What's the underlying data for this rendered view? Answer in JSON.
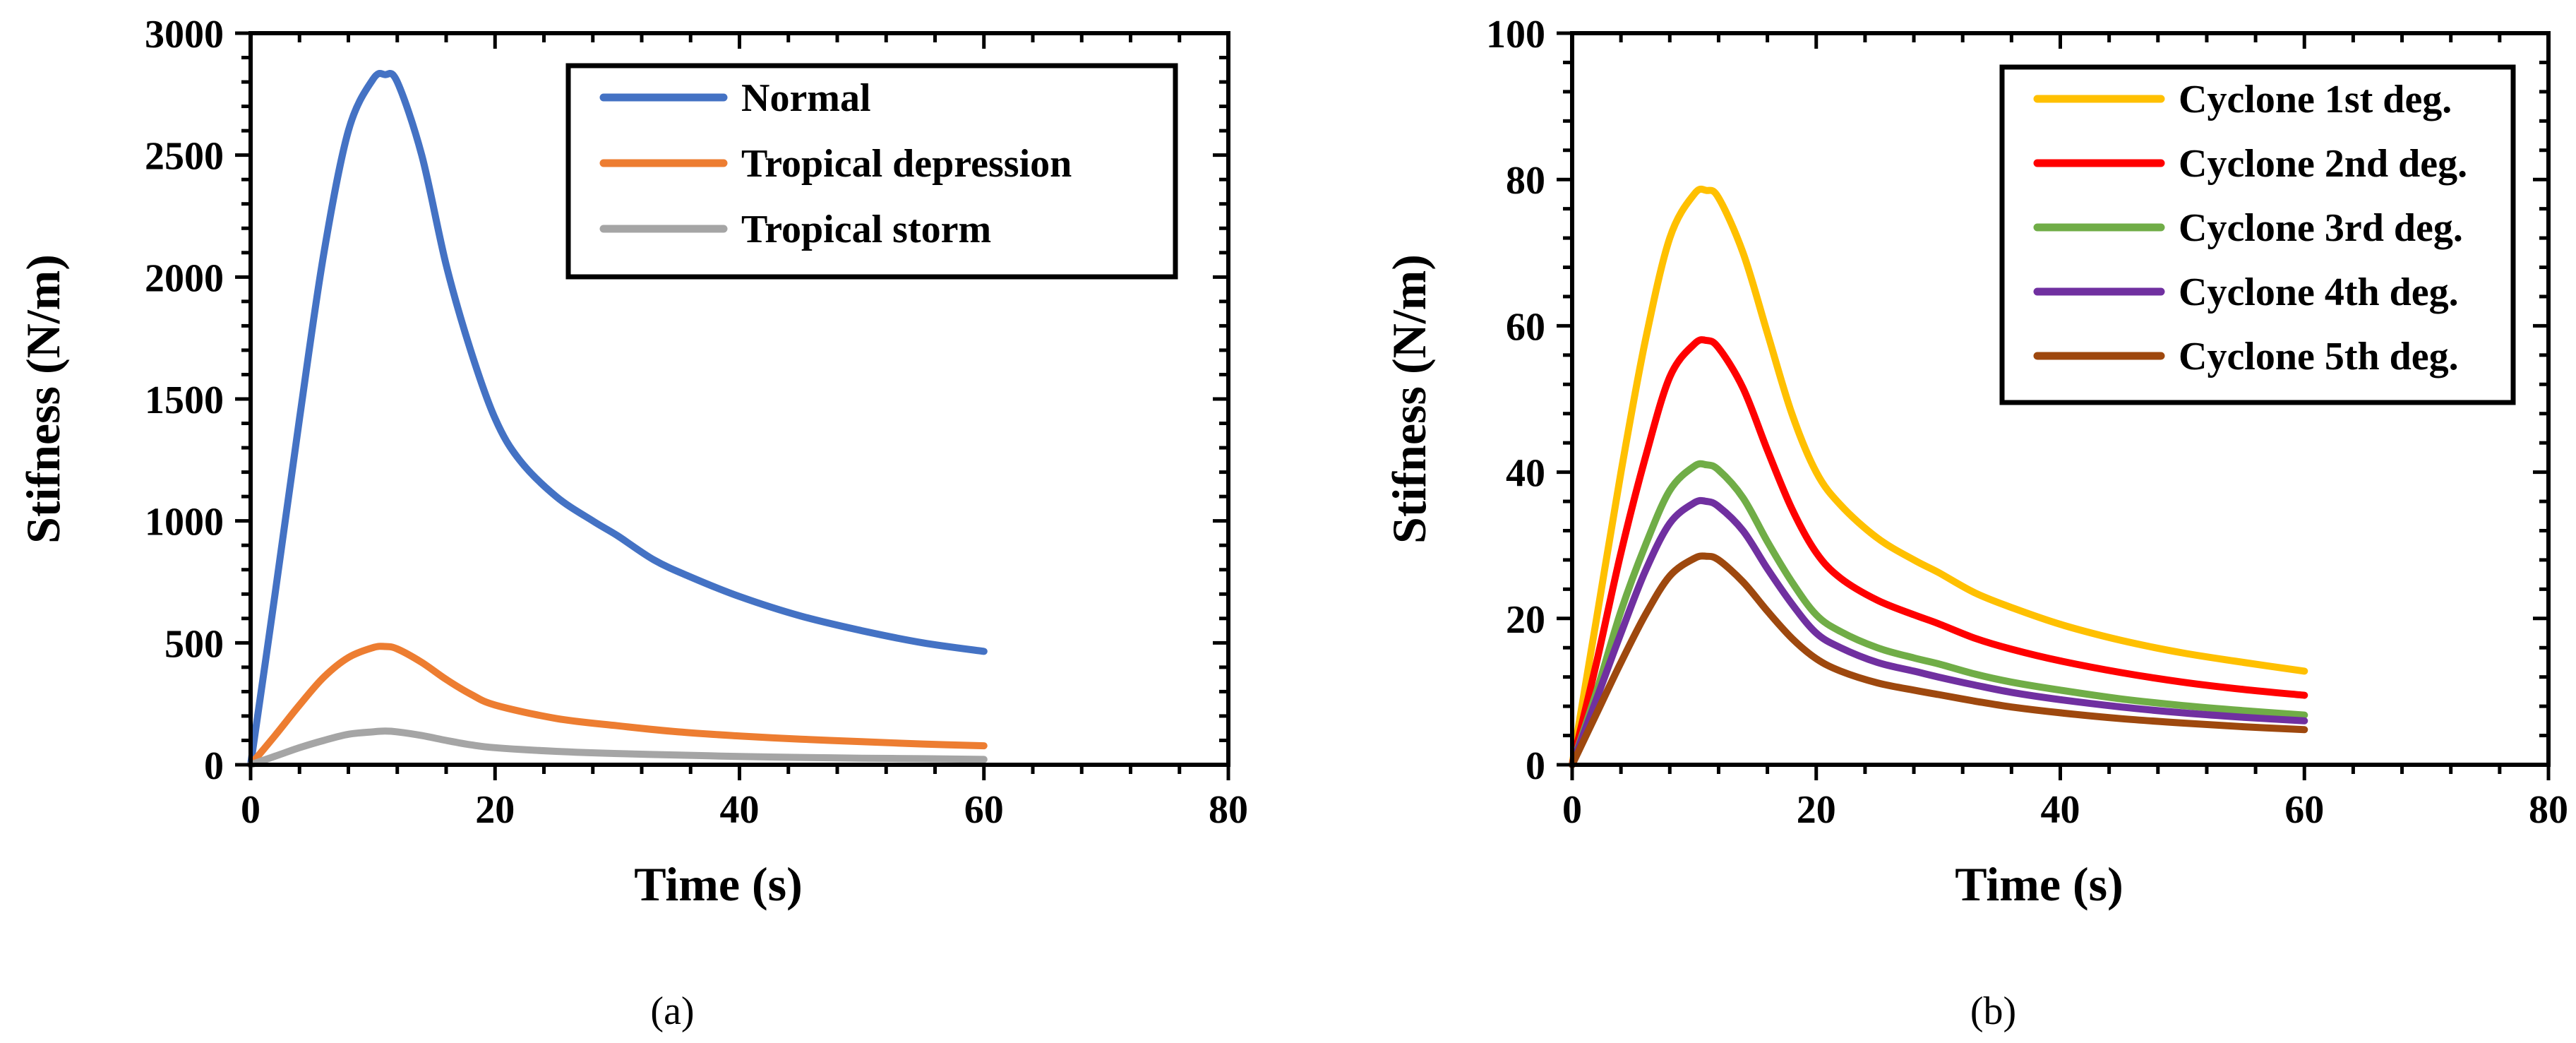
{
  "chart_data": [
    {
      "type": "line",
      "panel_label": "(a)",
      "title": "",
      "xlabel": "Time (s)",
      "ylabel": "Stifness (N/m)",
      "xlim": [
        0,
        80
      ],
      "ylim": [
        0,
        3000
      ],
      "xticks": [
        0,
        20,
        40,
        60,
        80
      ],
      "yticks": [
        0,
        500,
        1000,
        1500,
        2000,
        2500,
        3000
      ],
      "xtick_labels": [
        "0",
        "20",
        "40",
        "60",
        "80"
      ],
      "ytick_labels": [
        "0",
        "500",
        "1000",
        "1500",
        "2000",
        "2500",
        "3000"
      ],
      "grid": false,
      "legend_position": "top-right",
      "series": [
        {
          "name": "Normal",
          "color": "#4472C4",
          "x": [
            0,
            2,
            4,
            6,
            8,
            10,
            11,
            12,
            14,
            16,
            18,
            20,
            22,
            25,
            28,
            30,
            33,
            36,
            40,
            45,
            50,
            55,
            60
          ],
          "y": [
            0,
            700,
            1420,
            2100,
            2600,
            2810,
            2830,
            2800,
            2500,
            2050,
            1700,
            1420,
            1250,
            1100,
            1000,
            940,
            840,
            770,
            690,
            610,
            550,
            500,
            465
          ]
        },
        {
          "name": "Tropical depression",
          "color": "#ED7D31",
          "x": [
            0,
            2,
            4,
            6,
            8,
            10,
            11,
            12,
            14,
            16,
            18,
            20,
            25,
            30,
            35,
            40,
            45,
            50,
            55,
            60
          ],
          "y": [
            0,
            120,
            245,
            360,
            440,
            480,
            485,
            475,
            420,
            350,
            290,
            245,
            190,
            160,
            135,
            118,
            105,
            95,
            85,
            78
          ]
        },
        {
          "name": "Tropical storm",
          "color": "#A5A5A5",
          "x": [
            0,
            2,
            4,
            6,
            8,
            10,
            11,
            12,
            14,
            16,
            18,
            20,
            25,
            30,
            35,
            40,
            45,
            50,
            55,
            60
          ],
          "y": [
            0,
            35,
            70,
            100,
            125,
            135,
            138,
            135,
            120,
            100,
            82,
            70,
            55,
            46,
            40,
            34,
            30,
            27,
            25,
            22
          ]
        }
      ]
    },
    {
      "type": "line",
      "panel_label": "(b)",
      "title": "",
      "xlabel": "Time (s)",
      "ylabel": "Stifness (N/m)",
      "xlim": [
        0,
        80
      ],
      "ylim": [
        0,
        100
      ],
      "xticks": [
        0,
        20,
        40,
        60,
        80
      ],
      "yticks": [
        0,
        20,
        40,
        60,
        80,
        100
      ],
      "xtick_labels": [
        "0",
        "20",
        "40",
        "60",
        "80"
      ],
      "ytick_labels": [
        "0",
        "20",
        "40",
        "60",
        "80",
        "100"
      ],
      "grid": false,
      "legend_position": "top-right",
      "series": [
        {
          "name": "Cyclone 1st deg.",
          "color": "#FFC000",
          "x": [
            0,
            2,
            4,
            6,
            8,
            10,
            11,
            12,
            14,
            16,
            18,
            20,
            22,
            25,
            28,
            30,
            33,
            36,
            40,
            45,
            50,
            55,
            60
          ],
          "y": [
            0,
            20,
            40,
            58,
            72,
            78,
            78.5,
            77.5,
            70,
            59,
            48,
            40,
            35.5,
            31,
            28,
            26.3,
            23.5,
            21.5,
            19.2,
            17,
            15.3,
            14,
            12.8
          ]
        },
        {
          "name": "Cyclone 2nd deg.",
          "color": "#FF0000",
          "x": [
            0,
            2,
            4,
            6,
            8,
            10,
            11,
            12,
            14,
            16,
            18,
            20,
            22,
            25,
            28,
            30,
            33,
            36,
            40,
            45,
            50,
            55,
            60
          ],
          "y": [
            0,
            14,
            29,
            42,
            53,
            57.5,
            58,
            57,
            51.5,
            43,
            35,
            29,
            25.5,
            22.5,
            20.5,
            19.3,
            17.3,
            15.8,
            14.2,
            12.6,
            11.3,
            10.3,
            9.5
          ]
        },
        {
          "name": "Cyclone 3rd deg.",
          "color": "#70AD47",
          "x": [
            0,
            2,
            4,
            6,
            8,
            10,
            11,
            12,
            14,
            16,
            18,
            20,
            22,
            25,
            28,
            30,
            33,
            36,
            40,
            45,
            50,
            55,
            60
          ],
          "y": [
            0,
            10,
            21,
            30,
            37.5,
            40.8,
            41,
            40.3,
            36.5,
            30.5,
            25,
            20.5,
            18.2,
            16,
            14.6,
            13.8,
            12.4,
            11.3,
            10.2,
            9,
            8.1,
            7.4,
            6.8
          ]
        },
        {
          "name": "Cyclone 4th deg.",
          "color": "#7030A0",
          "x": [
            0,
            2,
            4,
            6,
            8,
            10,
            11,
            12,
            14,
            16,
            18,
            20,
            22,
            25,
            28,
            30,
            33,
            36,
            40,
            45,
            50,
            55,
            60
          ],
          "y": [
            0,
            9,
            18,
            26.5,
            33,
            35.8,
            36,
            35.3,
            32,
            26.8,
            22,
            18,
            16,
            14,
            12.8,
            12,
            10.9,
            9.9,
            8.9,
            7.9,
            7.1,
            6.5,
            6
          ]
        },
        {
          "name": "Cyclone 5th deg.",
          "color": "#9E480E",
          "x": [
            0,
            2,
            4,
            6,
            8,
            10,
            11,
            12,
            14,
            16,
            18,
            20,
            22,
            25,
            28,
            30,
            33,
            36,
            40,
            45,
            50,
            55,
            60
          ],
          "y": [
            0,
            7,
            14,
            20.5,
            25.8,
            28.2,
            28.5,
            28,
            25,
            21,
            17.3,
            14.5,
            12.8,
            11.2,
            10.2,
            9.6,
            8.7,
            7.9,
            7.1,
            6.3,
            5.7,
            5.2,
            4.8
          ]
        }
      ]
    }
  ]
}
